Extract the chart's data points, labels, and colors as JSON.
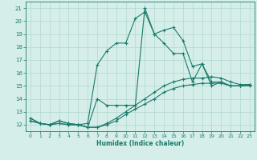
{
  "xlabel": "Humidex (Indice chaleur)",
  "ylabel": "",
  "xlim": [
    -0.5,
    23.5
  ],
  "ylim": [
    11.5,
    21.5
  ],
  "xticks": [
    0,
    1,
    2,
    3,
    4,
    5,
    6,
    7,
    8,
    9,
    10,
    11,
    12,
    13,
    14,
    15,
    16,
    17,
    18,
    19,
    20,
    21,
    22,
    23
  ],
  "yticks": [
    12,
    13,
    14,
    15,
    16,
    17,
    18,
    19,
    20,
    21
  ],
  "bg_color": "#d5eeea",
  "grid_color": "#b0d8d0",
  "line_color": "#1a7a6a",
  "lines": [
    {
      "x": [
        0,
        1,
        2,
        3,
        4,
        5,
        6,
        7,
        8,
        9,
        10,
        11,
        12,
        13,
        14,
        15,
        16,
        17,
        18,
        19,
        20,
        21,
        22,
        23
      ],
      "y": [
        12.5,
        12.1,
        12.0,
        12.3,
        12.1,
        12.0,
        12.1,
        16.6,
        17.7,
        18.3,
        18.3,
        20.2,
        20.7,
        19.0,
        18.3,
        17.5,
        17.5,
        15.3,
        16.7,
        15.3,
        15.3,
        15.0,
        15.0,
        15.1
      ]
    },
    {
      "x": [
        0,
        1,
        2,
        3,
        4,
        5,
        6,
        7,
        8,
        9,
        10,
        11,
        12,
        13,
        14,
        15,
        16,
        17,
        18,
        19,
        20,
        21,
        22,
        23
      ],
      "y": [
        12.5,
        12.1,
        12.0,
        12.3,
        12.1,
        12.0,
        11.8,
        14.0,
        13.5,
        13.5,
        13.5,
        13.5,
        21.0,
        19.0,
        19.3,
        19.5,
        18.5,
        16.5,
        16.7,
        15.0,
        15.3,
        15.0,
        15.0,
        15.1
      ]
    },
    {
      "x": [
        0,
        1,
        2,
        3,
        4,
        5,
        6,
        7,
        8,
        9,
        10,
        11,
        12,
        13,
        14,
        15,
        16,
        17,
        18,
        19,
        20,
        21,
        22,
        23
      ],
      "y": [
        12.3,
        12.1,
        12.0,
        12.1,
        12.0,
        12.0,
        11.8,
        11.8,
        12.1,
        12.5,
        13.0,
        13.5,
        14.0,
        14.5,
        15.0,
        15.3,
        15.5,
        15.6,
        15.6,
        15.7,
        15.6,
        15.3,
        15.1,
        15.1
      ]
    },
    {
      "x": [
        0,
        1,
        2,
        3,
        4,
        5,
        6,
        7,
        8,
        9,
        10,
        11,
        12,
        13,
        14,
        15,
        16,
        17,
        18,
        19,
        20,
        21,
        22,
        23
      ],
      "y": [
        12.3,
        12.1,
        12.0,
        12.1,
        12.0,
        12.0,
        11.8,
        11.8,
        12.0,
        12.3,
        12.8,
        13.2,
        13.6,
        14.0,
        14.5,
        14.8,
        15.0,
        15.1,
        15.2,
        15.2,
        15.2,
        15.0,
        15.0,
        15.0
      ]
    }
  ]
}
